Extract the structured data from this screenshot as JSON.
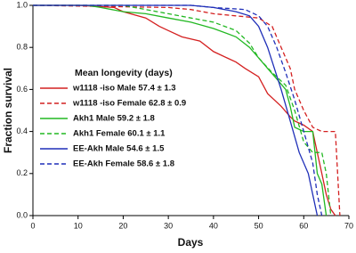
{
  "chart_data": {
    "type": "line",
    "step": false,
    "xlabel": "Days",
    "ylabel": "Fraction survival",
    "legend_title": "Mean longevity (days)",
    "legend": "upper left",
    "xlim": [
      0,
      70
    ],
    "xticks": [
      0,
      10,
      20,
      30,
      40,
      50,
      60,
      70
    ],
    "ylim": [
      0,
      1
    ],
    "yticks": [
      {
        "value": 0,
        "label": "0.0"
      },
      0.2,
      0.4,
      0.6,
      0.8,
      {
        "value": 1,
        "label": "1.0"
      }
    ],
    "series": [
      {
        "name": "w1118 -iso Male 57.4 ± 1.3",
        "color": "#d42020",
        "dashed": false,
        "x": [
          0,
          10,
          18,
          20,
          25,
          28,
          30,
          33,
          37,
          40,
          43,
          45,
          47,
          50,
          52,
          55,
          57,
          58,
          60,
          62,
          63,
          64,
          65,
          66,
          67
        ],
        "values": [
          1,
          1,
          0.99,
          0.97,
          0.94,
          0.9,
          0.88,
          0.85,
          0.83,
          0.78,
          0.75,
          0.73,
          0.7,
          0.66,
          0.58,
          0.52,
          0.47,
          0.45,
          0.43,
          0.4,
          0.3,
          0.2,
          0.1,
          0.03,
          0
        ]
      },
      {
        "name": "w1118 -iso Female 62.8 ± 0.9",
        "color": "#d42020",
        "dashed": true,
        "x": [
          0,
          30,
          35,
          40,
          45,
          50,
          53,
          55,
          57,
          58,
          60,
          62,
          64,
          67,
          68
        ],
        "values": [
          1,
          0.99,
          0.98,
          0.96,
          0.95,
          0.94,
          0.9,
          0.8,
          0.7,
          0.6,
          0.5,
          0.42,
          0.4,
          0.4,
          0
        ]
      },
      {
        "name": "Akh1 Male 59.2 ± 1.8",
        "color": "#22b822",
        "dashed": false,
        "x": [
          0,
          12,
          15,
          20,
          25,
          30,
          35,
          40,
          45,
          48,
          50,
          52,
          54,
          56,
          57,
          58,
          60,
          62,
          63,
          64,
          65
        ],
        "values": [
          1,
          1,
          0.99,
          0.97,
          0.96,
          0.94,
          0.92,
          0.89,
          0.85,
          0.8,
          0.75,
          0.7,
          0.65,
          0.6,
          0.52,
          0.42,
          0.4,
          0.4,
          0.2,
          0.15,
          0
        ]
      },
      {
        "name": "Akh1 Female 60.1 ± 1.1",
        "color": "#22b822",
        "dashed": true,
        "x": [
          0,
          20,
          25,
          30,
          35,
          40,
          45,
          48,
          50,
          53,
          56,
          58,
          60,
          62,
          64,
          65,
          66
        ],
        "values": [
          1,
          1,
          0.98,
          0.96,
          0.94,
          0.92,
          0.88,
          0.82,
          0.75,
          0.68,
          0.62,
          0.5,
          0.35,
          0.3,
          0.3,
          0.2,
          0
        ]
      },
      {
        "name": "EE-Akh Male 54.6 ± 1.5",
        "color": "#1f2fb8",
        "dashed": false,
        "x": [
          0,
          35,
          40,
          45,
          48,
          50,
          52,
          55,
          57,
          59,
          61,
          62,
          63
        ],
        "values": [
          1,
          1,
          0.99,
          0.97,
          0.95,
          0.9,
          0.8,
          0.6,
          0.45,
          0.3,
          0.2,
          0.1,
          0
        ]
      },
      {
        "name": "EE-Akh Female 58.6 ± 1.8",
        "color": "#1f2fb8",
        "dashed": true,
        "x": [
          0,
          35,
          40,
          47,
          50,
          52,
          54,
          56,
          58,
          60,
          62,
          63,
          64
        ],
        "values": [
          1,
          1,
          0.99,
          0.98,
          0.95,
          0.9,
          0.8,
          0.68,
          0.55,
          0.4,
          0.25,
          0.1,
          0
        ]
      }
    ]
  }
}
